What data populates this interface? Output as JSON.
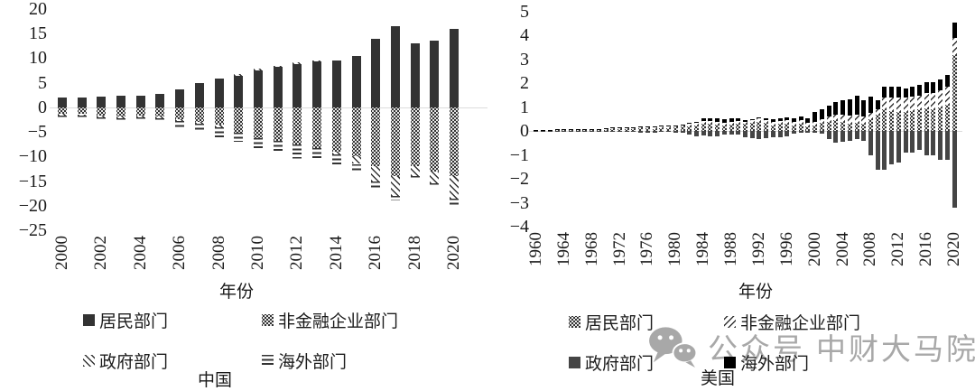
{
  "watermark": {
    "icon": "wechat-icon",
    "text": "公众号",
    "text2": "中财大马院",
    "color": "#a8a8a8"
  },
  "chart_data": [
    {
      "type": "bar",
      "stacked": true,
      "title": "中国",
      "xlabel": "年份",
      "ylim": [
        -25,
        20
      ],
      "ytick_step": 5,
      "xtick_every": 2,
      "grid": false,
      "years": [
        2000,
        2001,
        2002,
        2003,
        2004,
        2005,
        2006,
        2007,
        2008,
        2009,
        2010,
        2011,
        2012,
        2013,
        2014,
        2015,
        2016,
        2017,
        2018,
        2019,
        2020
      ],
      "series": [
        {
          "name": "居民部门",
          "pattern": "solid-dark",
          "values": [
            2.0,
            2.0,
            2.2,
            2.4,
            2.4,
            2.7,
            3.6,
            5.0,
            5.8,
            6.4,
            7.6,
            8.2,
            8.8,
            9.3,
            9.5,
            10.5,
            14.0,
            16.5,
            13.0,
            13.5,
            16.0
          ]
        },
        {
          "name": "非金融企业部门",
          "pattern": "dots",
          "values": [
            -1.3,
            -1.4,
            -1.6,
            -1.8,
            -1.6,
            -1.8,
            -2.4,
            -3.0,
            -3.6,
            -5.2,
            -6.2,
            -6.8,
            -7.6,
            -8.2,
            -9.0,
            -10.0,
            -12.0,
            -14.0,
            -12.0,
            -13.0,
            -14.0
          ]
        },
        {
          "name": "政府部门",
          "pattern": "diag",
          "values": [
            -0.3,
            -0.3,
            -0.4,
            -0.4,
            -0.5,
            -0.4,
            -0.4,
            -0.4,
            -0.4,
            0.3,
            0.3,
            0.2,
            0.3,
            0.3,
            -0.5,
            -1.5,
            -3.0,
            -4.0,
            -2.0,
            -2.5,
            -4.5
          ]
        },
        {
          "name": "海外部门",
          "pattern": "hlines",
          "values": [
            -0.4,
            -0.4,
            -0.4,
            -0.5,
            -0.5,
            -0.8,
            -1.2,
            -1.6,
            -2.0,
            -1.8,
            -2.2,
            -2.0,
            -2.8,
            -2.6,
            -2.5,
            -1.5,
            -1.5,
            -1.0,
            -0.5,
            -0.5,
            -1.5
          ]
        }
      ]
    },
    {
      "type": "bar",
      "stacked": true,
      "title": "美国",
      "xlabel": "年份",
      "ylim": [
        -4,
        5
      ],
      "ytick_step": 1,
      "xtick_every": 4,
      "grid": false,
      "years": [
        1960,
        1961,
        1962,
        1963,
        1964,
        1965,
        1966,
        1967,
        1968,
        1969,
        1970,
        1971,
        1972,
        1973,
        1974,
        1975,
        1976,
        1977,
        1978,
        1979,
        1980,
        1981,
        1982,
        1983,
        1984,
        1985,
        1986,
        1987,
        1988,
        1989,
        1990,
        1991,
        1992,
        1993,
        1994,
        1995,
        1996,
        1997,
        1998,
        1999,
        2000,
        2001,
        2002,
        2003,
        2004,
        2005,
        2006,
        2007,
        2008,
        2009,
        2010,
        2011,
        2012,
        2013,
        2014,
        2015,
        2016,
        2017,
        2018,
        2019,
        2020
      ],
      "series": [
        {
          "name": "居民部门",
          "pattern": "dots",
          "values": [
            0.02,
            0.02,
            0.03,
            0.03,
            0.04,
            0.04,
            0.04,
            0.05,
            0.05,
            0.04,
            0.06,
            0.08,
            0.08,
            0.09,
            0.09,
            0.12,
            0.12,
            0.1,
            0.12,
            0.12,
            0.15,
            0.18,
            0.2,
            0.25,
            0.3,
            0.3,
            0.28,
            0.22,
            0.28,
            0.3,
            0.3,
            0.35,
            0.4,
            0.35,
            0.25,
            0.3,
            0.3,
            0.25,
            0.3,
            0.2,
            0.25,
            0.35,
            0.4,
            0.45,
            0.4,
            0.3,
            0.35,
            0.3,
            0.5,
            0.7,
            0.9,
            0.85,
            0.8,
            0.8,
            0.85,
            0.9,
            0.95,
            0.9,
            1.0,
            1.1,
            3.2
          ]
        },
        {
          "name": "非金融企业部门",
          "pattern": "diag2",
          "values": [
            0.02,
            0.02,
            0.02,
            0.03,
            0.03,
            0.03,
            0.04,
            0.04,
            0.04,
            0.04,
            0.04,
            0.05,
            0.05,
            0.06,
            0.06,
            0.06,
            0.07,
            0.07,
            0.08,
            0.08,
            0.08,
            0.09,
            0.1,
            0.1,
            0.12,
            0.12,
            0.12,
            0.12,
            0.12,
            0.12,
            0.1,
            0.1,
            0.12,
            0.12,
            0.12,
            0.12,
            0.15,
            0.15,
            0.15,
            0.15,
            0.15,
            0.15,
            0.2,
            0.25,
            0.3,
            0.35,
            0.35,
            0.3,
            0.25,
            0.2,
            0.5,
            0.55,
            0.6,
            0.6,
            0.6,
            0.6,
            0.65,
            0.7,
            0.7,
            0.75,
            0.7
          ]
        },
        {
          "name": "政府部门",
          "pattern": "solid-gray",
          "values": [
            -0.01,
            -0.01,
            -0.01,
            -0.01,
            -0.01,
            -0.01,
            -0.02,
            -0.02,
            -0.02,
            -0.01,
            -0.03,
            -0.03,
            -0.03,
            -0.02,
            -0.02,
            -0.07,
            -0.06,
            -0.05,
            -0.04,
            -0.03,
            -0.08,
            -0.08,
            -0.15,
            -0.2,
            -0.18,
            -0.2,
            -0.2,
            -0.15,
            -0.15,
            -0.15,
            -0.25,
            -0.3,
            -0.35,
            -0.3,
            -0.25,
            -0.25,
            -0.2,
            -0.1,
            -0.05,
            -0.05,
            -0.05,
            -0.1,
            -0.35,
            -0.5,
            -0.45,
            -0.4,
            -0.35,
            -0.4,
            -1.0,
            -1.6,
            -1.6,
            -1.4,
            -1.3,
            -0.9,
            -0.9,
            -0.8,
            -1.0,
            -1.0,
            -1.2,
            -1.2,
            -3.2
          ]
        },
        {
          "name": "海外部门",
          "pattern": "solid-black",
          "values": [
            0.01,
            0.01,
            0.01,
            0.01,
            0.01,
            0.01,
            0.01,
            0.01,
            0.01,
            0.02,
            0.02,
            0.02,
            0.02,
            0.02,
            0.02,
            0.02,
            0.02,
            0.03,
            0.03,
            0.02,
            0.02,
            0.02,
            0.03,
            0.05,
            0.1,
            0.12,
            0.14,
            0.15,
            0.12,
            0.1,
            0.08,
            0.05,
            0.06,
            0.08,
            0.12,
            0.12,
            0.12,
            0.14,
            0.16,
            0.2,
            0.4,
            0.4,
            0.45,
            0.5,
            0.6,
            0.7,
            0.8,
            0.7,
            0.7,
            0.4,
            0.45,
            0.45,
            0.45,
            0.4,
            0.4,
            0.45,
            0.45,
            0.45,
            0.45,
            0.5,
            0.65
          ]
        }
      ]
    }
  ]
}
